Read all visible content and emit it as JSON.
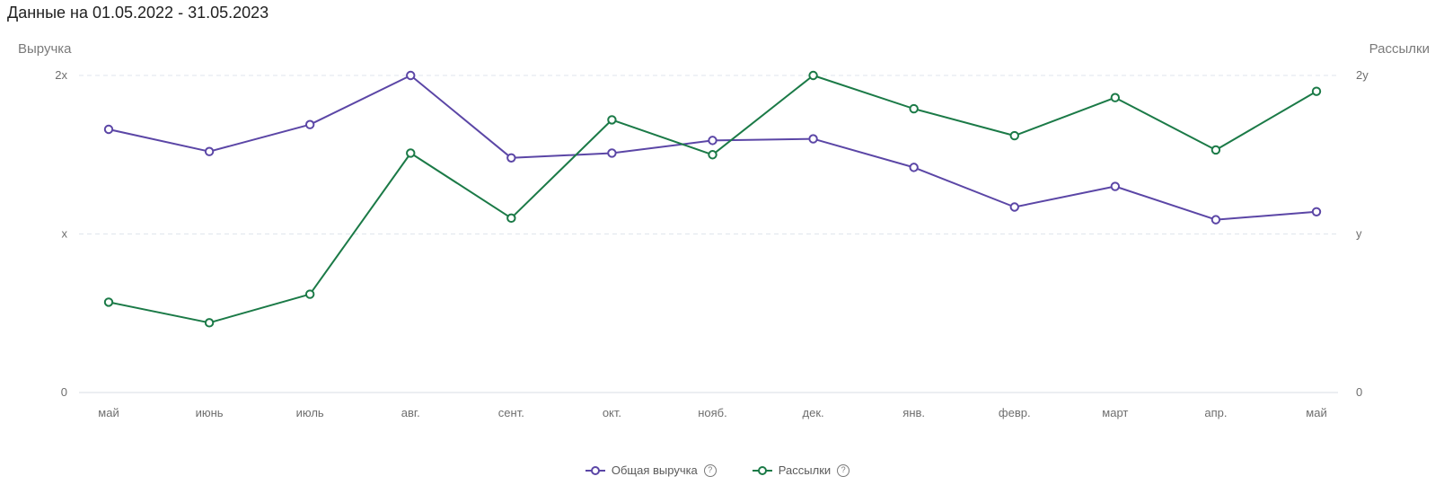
{
  "header": {
    "title": "Данные на 01.05.2022 - 31.05.2023"
  },
  "colors": {
    "revenue": "#5b46a6",
    "mailings": "#1b7a47",
    "grid": "#dfe5ec",
    "axis_line": "#e6e9ee"
  },
  "chart_data": {
    "type": "line",
    "categories": [
      "май",
      "июнь",
      "июль",
      "авг.",
      "сент.",
      "окт.",
      "нояб.",
      "дек.",
      "янв.",
      "февр.",
      "март",
      "апр.",
      "май"
    ],
    "y_left": {
      "label": "Выручка",
      "ticks": [
        "0",
        "x",
        "2x"
      ],
      "ylim": [
        0,
        2
      ]
    },
    "y_right": {
      "label": "Рассылки",
      "ticks": [
        "0",
        "y",
        "2y"
      ],
      "ylim": [
        0,
        2
      ]
    },
    "grid": true,
    "legend_position": "bottom-center",
    "series": [
      {
        "name": "Общая выручка",
        "axis": "left",
        "color_key": "revenue",
        "values": [
          1.66,
          1.52,
          1.69,
          2.0,
          1.48,
          1.51,
          1.59,
          1.6,
          1.42,
          1.17,
          1.3,
          1.09,
          1.14
        ]
      },
      {
        "name": "Рассылки",
        "axis": "right",
        "color_key": "mailings",
        "values": [
          0.57,
          0.44,
          0.62,
          1.51,
          1.1,
          1.72,
          1.5,
          2.0,
          1.79,
          1.62,
          1.86,
          1.53,
          1.9
        ]
      }
    ]
  },
  "legend": {
    "items": [
      {
        "label": "Общая выручка",
        "help": "?"
      },
      {
        "label": "Рассылки",
        "help": "?"
      }
    ]
  }
}
